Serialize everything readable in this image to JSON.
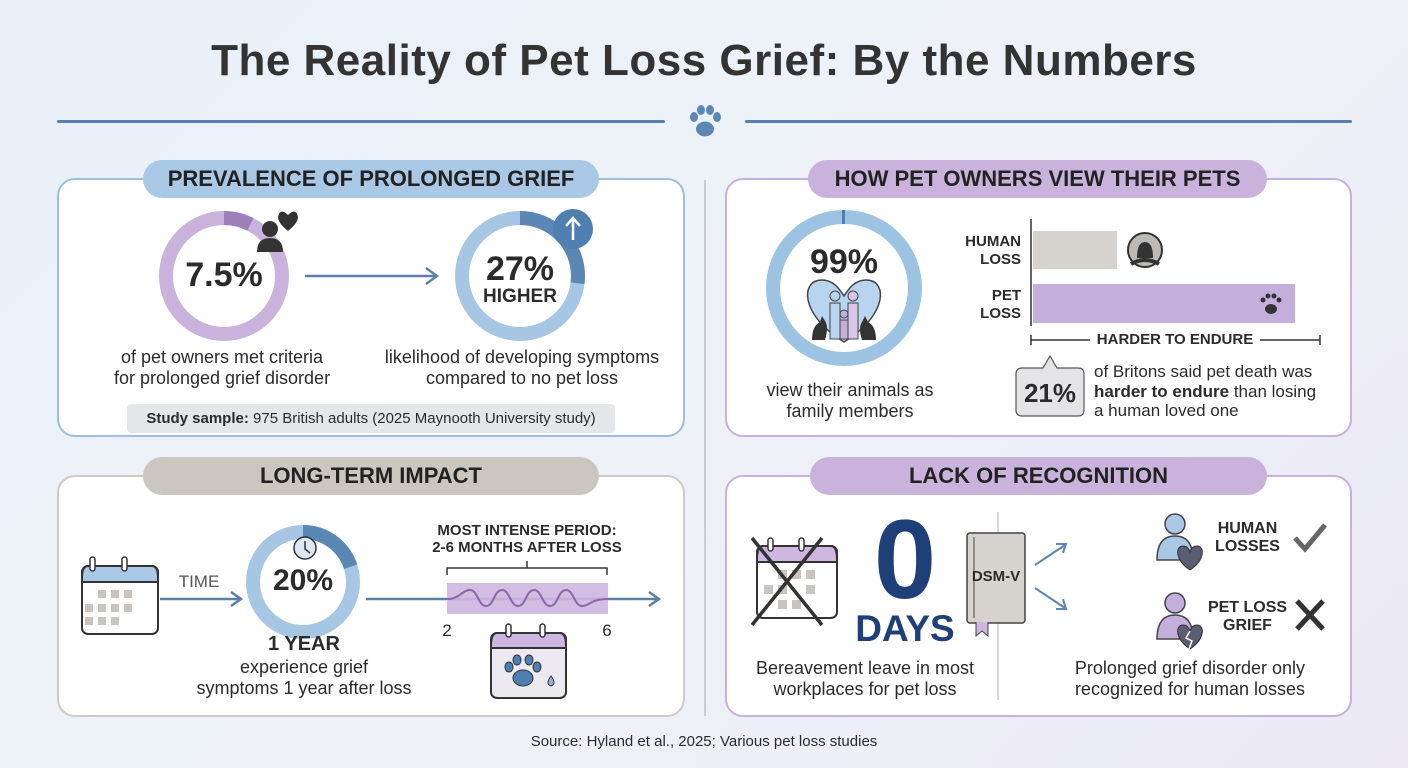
{
  "title": "The Reality of Pet Loss Grief: By the Numbers",
  "colors": {
    "blue": "#a6c6e4",
    "blue_dark": "#4f7fb0",
    "purple": "#c9b3dc",
    "purple_dark": "#9f7fba",
    "gray": "#cbc6bf",
    "navy": "#1e3f78"
  },
  "prevalence": {
    "header": "PREVALENCE OF PROLONGED GRIEF",
    "stat1": {
      "value": "7.5%",
      "percent": 7.5,
      "line1": "of pet owners met criteria",
      "line2": "for prolonged grief disorder",
      "icon": "broken-heart-person-icon"
    },
    "stat2": {
      "value": "27%",
      "sub": "HIGHER",
      "percent": 27,
      "line1": "likelihood of developing symptoms",
      "line2": "compared to no pet loss",
      "icon": "arrow-up-icon"
    },
    "sample_label": "Study sample:",
    "sample_text": " 975 British adults (2025 Maynooth University study)"
  },
  "view": {
    "header": "HOW PET OWNERS VIEW THEIR PETS",
    "stat": {
      "value": "99%",
      "percent": 99,
      "line1": "view their animals as",
      "line2": "family members"
    },
    "bars": [
      {
        "label1": "HUMAN",
        "label2": "LOSS",
        "icon": "person-icon"
      },
      {
        "label1": "PET",
        "label2": "LOSS",
        "icon": "paw-icon"
      }
    ],
    "axis_label": "HARDER TO ENDURE",
    "callout": {
      "value": "21%",
      "line1": "of Britons said pet death was",
      "bold": "harder to endure",
      "line2_rest": " than losing",
      "line3": "a human loved one"
    }
  },
  "longterm": {
    "header": "LONG-TERM IMPACT",
    "time_label": "TIME",
    "stat": {
      "value": "20%",
      "percent": 20,
      "title": "1 YEAR",
      "line1": "experience grief",
      "line2": "symptoms 1 year after loss"
    },
    "period_line1": "MOST INTENSE PERIOD:",
    "period_line2": "2-6 MONTHS AFTER LOSS",
    "tick_start": "2",
    "tick_end": "6"
  },
  "recognition": {
    "header": "LACK OF RECOGNITION",
    "days_value": "0",
    "days_label": "DAYS",
    "left_line1": "Bereavement leave in most",
    "left_line2": "workplaces for pet loss",
    "book_label": "DSM-V",
    "human1": "HUMAN",
    "human2": "LOSSES",
    "pet1": "PET LOSS",
    "pet2": "GRIEF",
    "right_line1": "Prolonged grief disorder only",
    "right_line2": "recognized for human losses"
  },
  "source": "Source: Hyland et al., 2025; Various pet loss studies"
}
